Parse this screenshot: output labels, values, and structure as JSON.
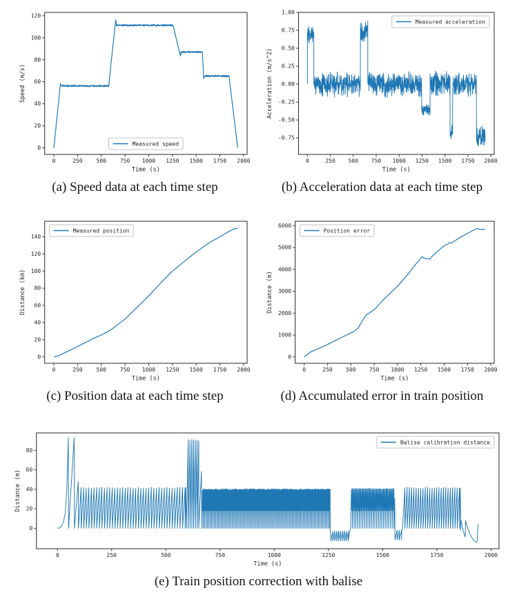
{
  "page": {
    "background": "#ffffff"
  },
  "line_color": "#1f77b4",
  "chart_data": [
    {
      "id": "speed",
      "type": "line",
      "caption": "(a) Speed data at each time step",
      "xlabel": "Time (s)",
      "ylabel": "Speed (m/s)",
      "xlim": [
        -97,
        2037
      ],
      "ylim": [
        -6,
        123
      ],
      "xticks": [
        0,
        250,
        500,
        750,
        1000,
        1250,
        1500,
        1750,
        2000
      ],
      "yticks": [
        0,
        20,
        40,
        60,
        80,
        100,
        120
      ],
      "grid": false,
      "legend": {
        "label": "Measured speed",
        "position": "lower-center"
      },
      "color": "#1f77b4",
      "series": [
        {
          "name": "Measured speed",
          "mode": "noisy-path",
          "dt": 2,
          "noise": 0.9,
          "seed": 11,
          "points": [
            [
              0,
              0
            ],
            [
              70,
              59
            ],
            [
              76,
              56.3
            ],
            [
              578,
              56.3
            ],
            [
              652,
              116.5
            ],
            [
              660,
              111.3
            ],
            [
              1256,
              111.3
            ],
            [
              1334,
              83.5
            ],
            [
              1342,
              87
            ],
            [
              1566,
              87
            ],
            [
              1579,
              62.5
            ],
            [
              1586,
              65.2
            ],
            [
              1846,
              65.2
            ],
            [
              1938,
              0
            ]
          ]
        }
      ]
    },
    {
      "id": "acceleration",
      "type": "line",
      "caption": "(b) Acceleration data at each time step",
      "xlabel": "Time (s)",
      "ylabel": "Acceleration (m/s^2)",
      "xlim": [
        -97,
        2037
      ],
      "ylim": [
        -0.98,
        1.0
      ],
      "xticks": [
        0,
        250,
        500,
        750,
        1000,
        1250,
        1500,
        1750,
        2000
      ],
      "yticks": [
        1.0,
        0.75,
        0.5,
        0.25,
        0.0,
        -0.25,
        -0.5,
        -0.75
      ],
      "yticklabels": [
        "1.00",
        "0.75",
        "0.50",
        "0.25",
        "0.00",
        "-0.25",
        "-0.50",
        "-0.75"
      ],
      "grid": false,
      "legend": {
        "label": "Measured acceleration",
        "position": "upper-right"
      },
      "color": "#1f77b4",
      "series": [
        {
          "name": "Measured acceleration",
          "mode": "noisy-segments",
          "dt": 1.7,
          "seed": 22,
          "prepend": [
            [
              0,
              0
            ]
          ],
          "segments": [
            [
              0,
              70,
              0.73,
              0.17
            ],
            [
              70,
              578,
              0.0,
              0.19
            ],
            [
              578,
              658,
              0.73,
              0.16
            ],
            [
              658,
              1246,
              0.0,
              0.19
            ],
            [
              1246,
              1338,
              -0.36,
              0.1
            ],
            [
              1338,
              1556,
              0.0,
              0.19
            ],
            [
              1556,
              1584,
              -0.68,
              0.14
            ],
            [
              1584,
              1844,
              0.0,
              0.19
            ],
            [
              1844,
              1938,
              -0.72,
              0.16
            ]
          ]
        }
      ]
    },
    {
      "id": "position",
      "type": "line",
      "caption": "(c) Position data at each time step",
      "xlabel": "Time (s)",
      "ylabel": "Distance (km)",
      "xlim": [
        -97,
        2037
      ],
      "ylim": [
        -7.5,
        158
      ],
      "xticks": [
        0,
        250,
        500,
        750,
        1000,
        1250,
        1500,
        1750,
        2000
      ],
      "yticks": [
        0,
        20,
        40,
        60,
        80,
        100,
        120,
        140
      ],
      "grid": false,
      "legend": {
        "label": "Measured position",
        "position": "upper-left"
      },
      "color": "#1f77b4",
      "series": [
        {
          "name": "Measured position",
          "mode": "path",
          "points": [
            [
              0,
              0
            ],
            [
              50,
              1.3
            ],
            [
              100,
              4
            ],
            [
              250,
              12
            ],
            [
              400,
              20.5
            ],
            [
              500,
              25.5
            ],
            [
              580,
              30
            ],
            [
              620,
              33
            ],
            [
              660,
              36.5
            ],
            [
              750,
              44
            ],
            [
              875,
              57.5
            ],
            [
              1000,
              71
            ],
            [
              1125,
              86
            ],
            [
              1250,
              100
            ],
            [
              1340,
              108
            ],
            [
              1440,
              117
            ],
            [
              1560,
              127
            ],
            [
              1660,
              134.5
            ],
            [
              1750,
              140
            ],
            [
              1850,
              146.5
            ],
            [
              1900,
              149
            ],
            [
              1938,
              150
            ]
          ]
        }
      ]
    },
    {
      "id": "position-error",
      "type": "line",
      "caption": "(d) Accumulated error in train position",
      "xlabel": "Time (s)",
      "ylabel": "Distance (m)",
      "xlim": [
        -97,
        2037
      ],
      "ylim": [
        -290,
        6200
      ],
      "xticks": [
        0,
        250,
        500,
        750,
        1000,
        1250,
        1500,
        1750,
        2000
      ],
      "yticks": [
        0,
        1000,
        2000,
        3000,
        4000,
        5000,
        6000
      ],
      "grid": false,
      "legend": {
        "label": "Position error",
        "position": "upper-left"
      },
      "color": "#1f77b4",
      "series": [
        {
          "name": "Position error",
          "mode": "path",
          "points": [
            [
              0,
              20
            ],
            [
              25,
              80
            ],
            [
              70,
              235
            ],
            [
              110,
              300
            ],
            [
              250,
              570
            ],
            [
              400,
              890
            ],
            [
              540,
              1180
            ],
            [
              580,
              1330
            ],
            [
              615,
              1580
            ],
            [
              660,
              1900
            ],
            [
              705,
              2030
            ],
            [
              760,
              2200
            ],
            [
              850,
              2620
            ],
            [
              1000,
              3230
            ],
            [
              1100,
              3720
            ],
            [
              1200,
              4260
            ],
            [
              1248,
              4500
            ],
            [
              1262,
              4585
            ],
            [
              1285,
              4515
            ],
            [
              1310,
              4490
            ],
            [
              1345,
              4480
            ],
            [
              1400,
              4720
            ],
            [
              1500,
              5080
            ],
            [
              1540,
              5165
            ],
            [
              1556,
              5230
            ],
            [
              1576,
              5200
            ],
            [
              1600,
              5270
            ],
            [
              1700,
              5530
            ],
            [
              1800,
              5760
            ],
            [
              1852,
              5870
            ],
            [
              1880,
              5835
            ],
            [
              1938,
              5825
            ]
          ]
        }
      ]
    },
    {
      "id": "balise",
      "type": "line",
      "caption": "(e) Train position correction with balise",
      "xlabel": "Time (s)",
      "ylabel": "Distance (m)",
      "xlim": [
        -97,
        2037
      ],
      "ylim": [
        -21,
        98
      ],
      "xticks": [
        0,
        250,
        500,
        750,
        1000,
        1250,
        1500,
        1750,
        2000
      ],
      "yticks": [
        0,
        20,
        40,
        60,
        80
      ],
      "grid": false,
      "legend": {
        "label": "Balise calibration distance",
        "position": "upper-right"
      },
      "color": "#1f77b4",
      "series": [
        {
          "name": "Balise calibration distance",
          "mode": "composite",
          "parts": [
            {
              "mode": "path",
              "points": [
                [
                  0,
                  0
                ],
                [
                  12,
                  0.5
                ],
                [
                  20,
                  2.5
                ],
                [
                  28,
                  7
                ],
                [
                  36,
                  16
                ],
                [
                  43,
                  40
                ],
                [
                  50,
                  93
                ]
              ]
            },
            {
              "mode": "saw",
              "t0": 51,
              "t1": 77,
              "period": 26,
              "base": 0,
              "peak": 93
            },
            {
              "mode": "saw",
              "t0": 78,
              "t1": 96,
              "period": 18,
              "base": 0,
              "peak": 48
            },
            {
              "mode": "saw",
              "t0": 97,
              "t1": 592,
              "period": 12,
              "base": 0,
              "peak": 41.5,
              "jitter": 0.7,
              "seed": 5
            },
            {
              "mode": "saw",
              "t0": 595,
              "t1": 652,
              "period": 8.2,
              "base": 0,
              "peak": 91,
              "jitter": 1,
              "seed": 6
            },
            {
              "mode": "saw",
              "t0": 652,
              "t1": 664,
              "period": 12,
              "base": 0,
              "peak": 58.5
            },
            {
              "mode": "saw",
              "t0": 666,
              "t1": 1258,
              "period": 6.4,
              "bases": [
                0,
                18
              ],
              "peak": 40,
              "jitter": 0.6,
              "seed": 7
            },
            {
              "mode": "path",
              "points": [
                [
                  1258,
                  0
                ],
                [
                  1261,
                  -13
                ]
              ]
            },
            {
              "mode": "saw",
              "t0": 1261,
              "t1": 1348,
              "period": 9,
              "base": -13,
              "peak": -3,
              "jitter": 0.5,
              "seed": 8
            },
            {
              "mode": "saw",
              "t0": 1352,
              "t1": 1552,
              "period": 8,
              "bases": [
                0,
                18
              ],
              "peak": 40.5,
              "jitter": 0.6,
              "seed": 9
            },
            {
              "mode": "path",
              "points": [
                [
                  1552,
                  0
                ],
                [
                  1556,
                  31
                ],
                [
                  1557,
                  -12
                ]
              ]
            },
            {
              "mode": "saw",
              "t0": 1557,
              "t1": 1588,
              "period": 10,
              "base": -12,
              "peak": -2
            },
            {
              "mode": "saw",
              "t0": 1592,
              "t1": 1858,
              "period": 10.5,
              "base": 0,
              "peak": 41.5,
              "jitter": 0.7,
              "seed": 10
            },
            {
              "mode": "path",
              "points": [
                [
                  1860,
                  -2
                ],
                [
                  1862,
                  8
                ],
                [
                  1866,
                  3
                ],
                [
                  1872,
                  -3
                ],
                [
                  1878,
                  -7
                ],
                [
                  1881,
                  -9
                ],
                [
                  1883,
                  8
                ],
                [
                  1888,
                  3
                ],
                [
                  1896,
                  -2
                ],
                [
                  1905,
                  -7
                ],
                [
                  1915,
                  -11
                ],
                [
                  1925,
                  -13.5
                ],
                [
                  1932,
                  -14.5
                ],
                [
                  1936,
                  -13
                ],
                [
                  1940,
                  4
                ]
              ]
            }
          ]
        }
      ]
    }
  ]
}
